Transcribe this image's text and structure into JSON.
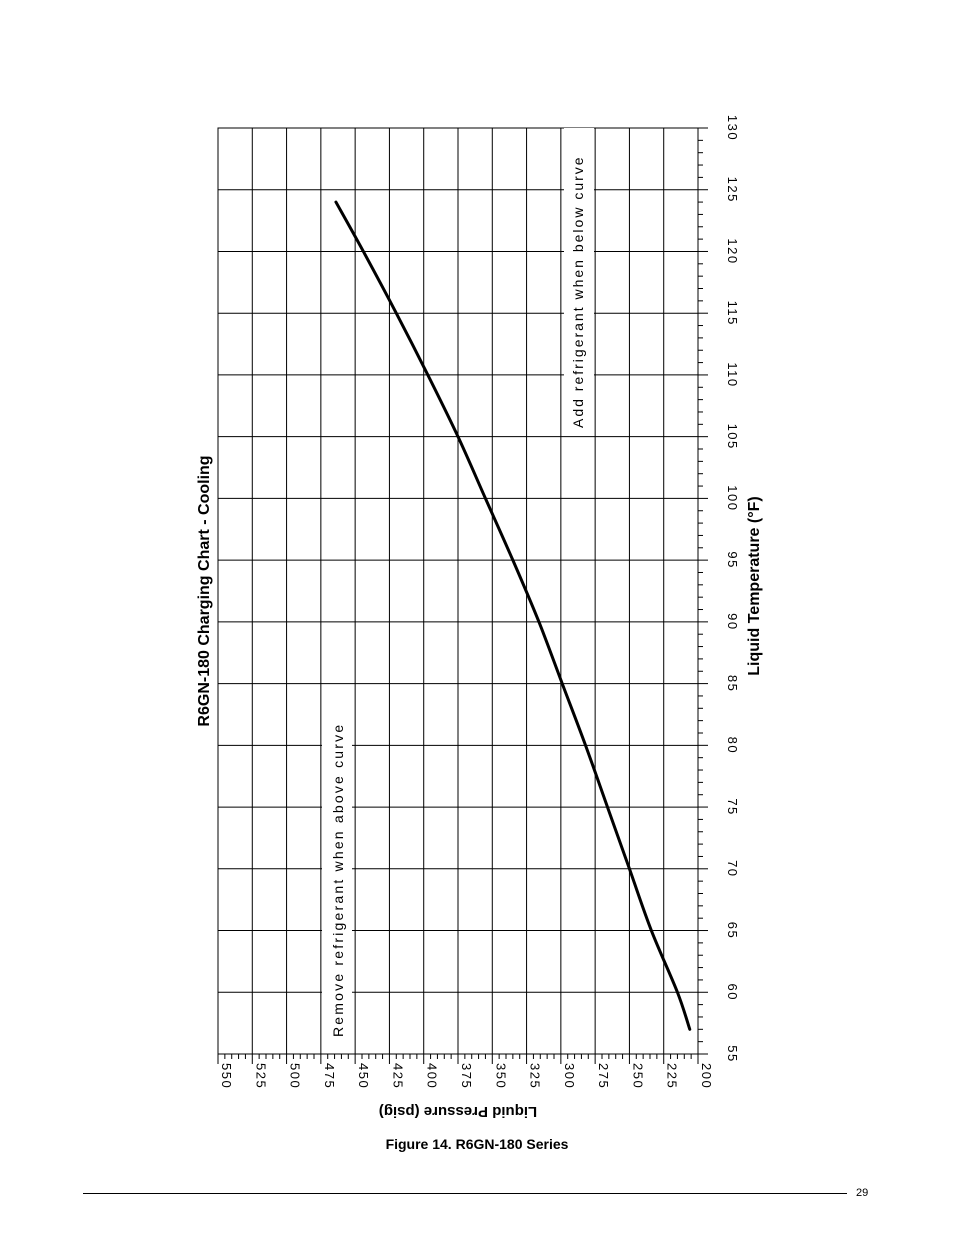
{
  "chart_data": {
    "type": "line",
    "title": "R6GN-180 Charging Chart - Cooling",
    "xlabel": "Liquid Temperature (°F)",
    "ylabel": "Liquid Pressure (psig)",
    "xlim": [
      55,
      130
    ],
    "ylim": [
      200,
      550
    ],
    "x_ticks": [
      "55",
      "60",
      "65",
      "70",
      "75",
      "80",
      "85",
      "90",
      "95",
      "100",
      "105",
      "110",
      "115",
      "120",
      "125",
      "130"
    ],
    "y_ticks": [
      "550",
      "525",
      "500",
      "475",
      "450",
      "425",
      "400",
      "375",
      "350",
      "325",
      "300",
      "275",
      "250",
      "225",
      "200"
    ],
    "grid": true,
    "legend": "none",
    "series": [
      {
        "x": [
          57,
          60,
          65,
          70,
          75,
          80,
          85,
          90,
          95,
          100,
          105,
          110,
          115,
          120,
          124
        ],
        "y": [
          206,
          215,
          234,
          250,
          266,
          282,
          299,
          316,
          335,
          355,
          375,
          397,
          420,
          444,
          464
        ],
        "color": "#000000"
      }
    ],
    "annotations": [
      "Remove refrigerant when above curve",
      "Add refrigerant when below curve"
    ]
  },
  "figure": {
    "caption": "Figure 14. R6GN-180 Series",
    "page_number": "29"
  }
}
